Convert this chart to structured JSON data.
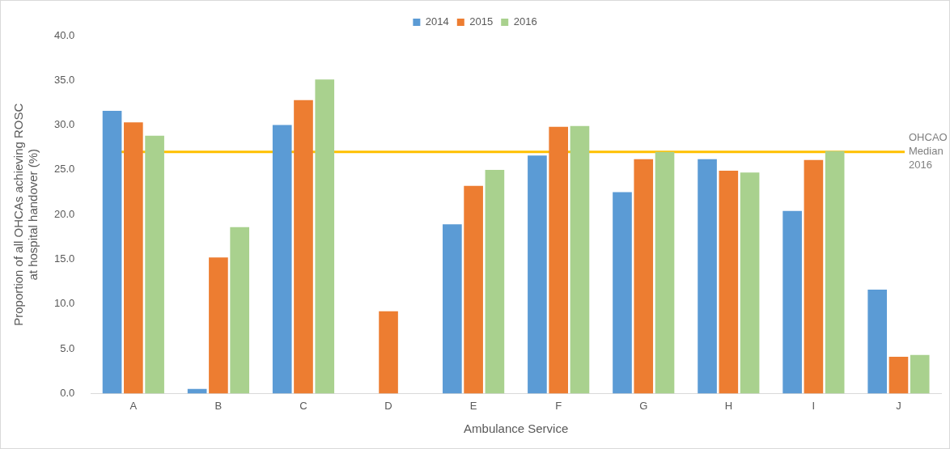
{
  "chart_data": {
    "type": "bar",
    "xlabel": "Ambulance Service",
    "ylabel": "Proportion of all OHCAs achieving ROSC\nat hospital handover (%)",
    "categories": [
      "A",
      "B",
      "C",
      "D",
      "E",
      "F",
      "G",
      "H",
      "I",
      "J"
    ],
    "series": [
      {
        "name": "2014",
        "color": "#5b9bd5",
        "values": [
          31.6,
          0.5,
          30.0,
          null,
          18.9,
          26.6,
          22.5,
          26.2,
          20.4,
          11.6
        ]
      },
      {
        "name": "2015",
        "color": "#ed7d31",
        "values": [
          30.3,
          15.2,
          32.8,
          9.2,
          23.2,
          29.8,
          26.2,
          24.9,
          26.1,
          4.1
        ]
      },
      {
        "name": "2016",
        "color": "#a9d18e",
        "values": [
          28.8,
          18.6,
          35.1,
          null,
          25.0,
          29.9,
          27.0,
          24.7,
          27.1,
          4.3
        ]
      }
    ],
    "ylim": [
      0,
      40
    ],
    "yticks": [
      {
        "value": 0,
        "label": "0.0"
      },
      {
        "value": 5,
        "label": "5.0"
      },
      {
        "value": 10,
        "label": "10.0"
      },
      {
        "value": 15,
        "label": "15.0"
      },
      {
        "value": 20,
        "label": "20.0"
      },
      {
        "value": 25,
        "label": "25.0"
      },
      {
        "value": 30,
        "label": "30.0"
      },
      {
        "value": 35,
        "label": "35.0"
      },
      {
        "value": 40,
        "label": "40.0"
      }
    ],
    "ref_lines": [
      {
        "axis": "y",
        "value": 27.0,
        "label": "OHCAO Median 2016",
        "color": "#ffc000"
      }
    ],
    "grid": false,
    "legend": "top"
  }
}
